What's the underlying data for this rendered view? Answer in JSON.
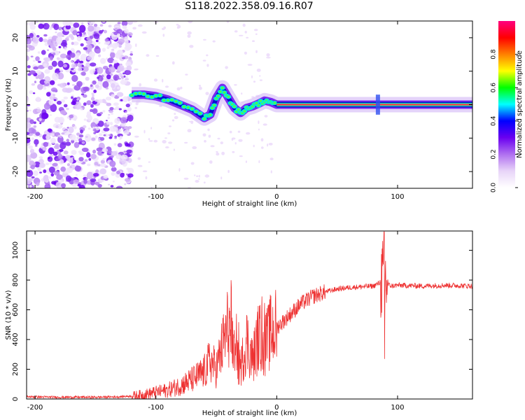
{
  "title": "S118.2022.358.09.16.R07",
  "chart_data": [
    {
      "type": "heatmap",
      "xlabel": "Height of straight line (km)",
      "ylabel": "Frequency (Hz)",
      "xlim": [
        -207,
        162
      ],
      "ylim": [
        -25,
        25
      ],
      "xticks": [
        -200,
        -100,
        0,
        100
      ],
      "yticks": [
        -20,
        -10,
        0,
        10,
        20
      ],
      "colorbar": {
        "label": "Normalized spectral amplitude",
        "ticks": [
          0.0,
          0.2,
          0.4,
          0.6,
          0.8
        ],
        "range": [
          0,
          1
        ],
        "colors": [
          "#ffffff",
          "#e8d4f8",
          "#b070f0",
          "#6a00f0",
          "#0000ff",
          "#00ffff",
          "#00ff00",
          "#ffff00",
          "#ff8000",
          "#ff0000",
          "#ff0080"
        ]
      },
      "ridge": {
        "x": [
          -120,
          -110,
          -100,
          -90,
          -80,
          -70,
          -60,
          -55,
          -50,
          -45,
          -40,
          -35,
          -30,
          -25,
          -20,
          -15,
          -10,
          -5,
          0,
          20,
          50,
          80,
          82,
          85,
          100,
          130,
          162
        ],
        "y": [
          3,
          3,
          2.5,
          1.5,
          0,
          -1.5,
          -4,
          -3,
          2,
          5,
          2,
          -1,
          -2.5,
          -1,
          -0.5,
          0.3,
          1.2,
          0.8,
          0,
          0,
          0,
          0,
          0,
          0,
          0,
          0,
          0
        ]
      },
      "noise_region_x": [
        -207,
        -120
      ]
    },
    {
      "type": "line",
      "xlabel": "Height of straight line (km)",
      "ylabel": "SNR (10 * v/v)",
      "xlim": [
        -207,
        162
      ],
      "ylim": [
        0,
        1130
      ],
      "xticks": [
        -200,
        -100,
        0,
        100
      ],
      "yticks": [
        0,
        200,
        400,
        600,
        800,
        1000
      ],
      "color": "#ee3333",
      "x": [
        -207,
        -180,
        -150,
        -130,
        -120,
        -110,
        -100,
        -90,
        -80,
        -70,
        -60,
        -55,
        -50,
        -45,
        -40,
        -35,
        -30,
        -25,
        -20,
        -15,
        -10,
        -5,
        0,
        10,
        20,
        30,
        40,
        50,
        60,
        70,
        80,
        85,
        88,
        90,
        92,
        95,
        100,
        120,
        140,
        162
      ],
      "y": [
        15,
        12,
        12,
        15,
        20,
        30,
        45,
        60,
        90,
        130,
        180,
        260,
        200,
        350,
        500,
        300,
        200,
        400,
        260,
        420,
        350,
        450,
        480,
        560,
        640,
        690,
        720,
        740,
        750,
        755,
        760,
        780,
        820,
        800,
        770,
        760,
        765,
        760,
        765,
        760
      ]
    }
  ]
}
